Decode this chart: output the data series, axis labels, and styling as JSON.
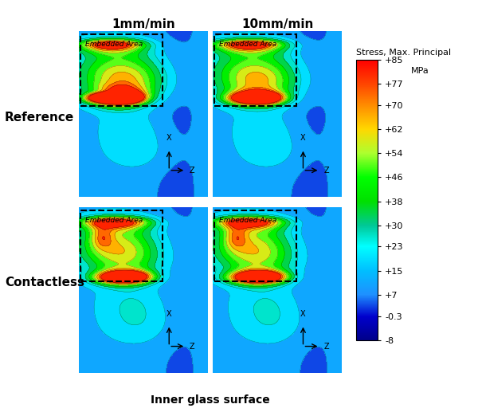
{
  "title_col1": "1mm/min",
  "title_col2": "10mm/min",
  "row_label1": "Reference",
  "row_label2": "Contactless",
  "bottom_label": "Inner glass surface",
  "colorbar_title": "Stress, Max. Principal",
  "colorbar_unit": "MPa",
  "colorbar_levels": [
    -8,
    -0.3,
    7,
    15,
    23,
    30,
    38,
    46,
    54,
    62,
    70,
    77,
    85
  ],
  "vmin": -8,
  "vmax": 85,
  "embedded_area_label": "Embedded Area",
  "fig_bg": "#ffffff",
  "level_colors_lo_to_hi": [
    "#00008b",
    "#0000cd",
    "#1e90ff",
    "#00bfff",
    "#00ffff",
    "#00c896",
    "#00e000",
    "#00ff00",
    "#adff2f",
    "#ffd700",
    "#ff8c00",
    "#ff4500",
    "#ff0000"
  ]
}
